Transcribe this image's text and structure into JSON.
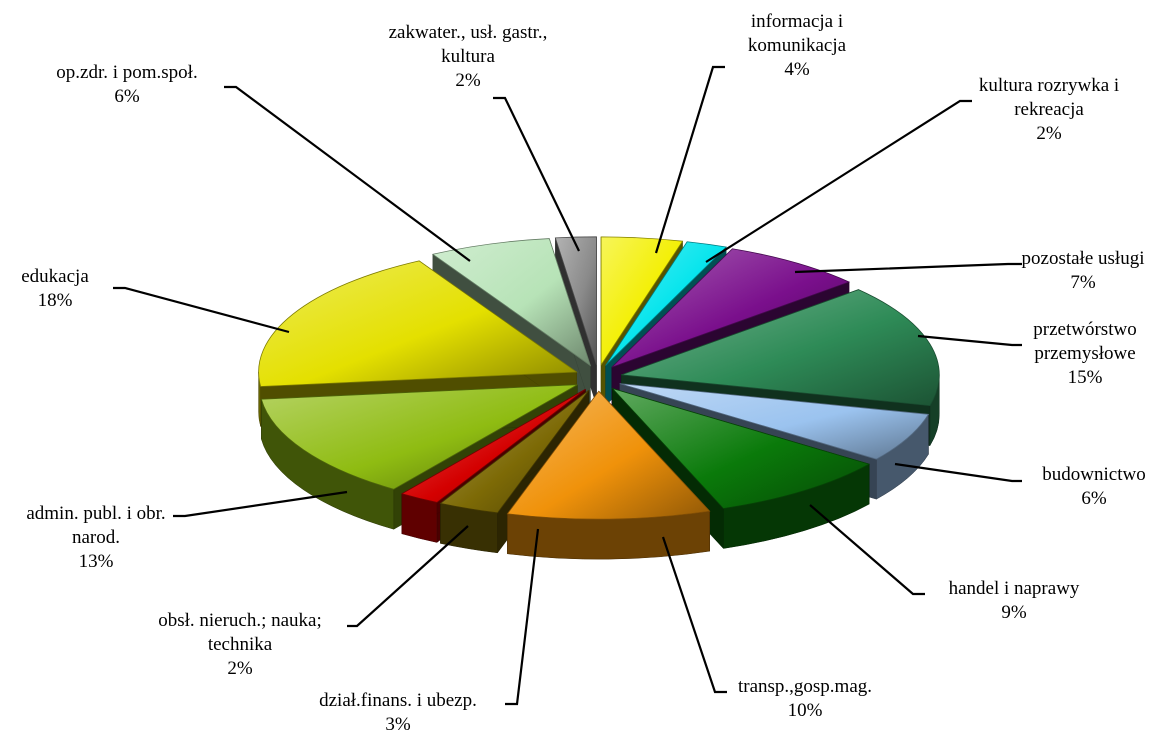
{
  "chart_data": {
    "type": "pie",
    "title": "",
    "style": "exploded 3D pie",
    "legend": "none",
    "series": [
      {
        "label": [
          "informacja i",
          "komunikacja"
        ],
        "pct_label": "4%",
        "value": 4,
        "color": "#f3ef00"
      },
      {
        "label": [
          "kultura rozrywka i",
          "rekreacja"
        ],
        "pct_label": "2%",
        "value": 2,
        "color": "#00e4ec"
      },
      {
        "label": [
          "pozostałe usługi"
        ],
        "pct_label": "7%",
        "value": 7,
        "color": "#7a0f8c"
      },
      {
        "label": [
          "przetwórstwo",
          "przemysłowe"
        ],
        "pct_label": "15%",
        "value": 15,
        "color": "#2e8b57"
      },
      {
        "label": [
          "budownictwo"
        ],
        "pct_label": "6%",
        "value": 6,
        "color": "#9bc3ef"
      },
      {
        "label": [
          "handel i naprawy"
        ],
        "pct_label": "9%",
        "value": 9,
        "color": "#0a7a0a"
      },
      {
        "label": [
          "transp.,gosp.mag."
        ],
        "pct_label": "10%",
        "value": 10,
        "color": "#f0920a"
      },
      {
        "label": [
          "dział.finans. i ubezp."
        ],
        "pct_label": "3%",
        "value": 3,
        "color": "#7d6a06"
      },
      {
        "label": [
          "obsł. nieruch.; nauka;",
          "technika"
        ],
        "pct_label": "2%",
        "value": 2,
        "color": "#d40000"
      },
      {
        "label": [
          "admin. publ. i obr.",
          "narod."
        ],
        "pct_label": "13%",
        "value": 13,
        "color": "#8fbc12"
      },
      {
        "label": [
          "edukacja"
        ],
        "pct_label": "18%",
        "value": 18,
        "color": "#e4e000"
      },
      {
        "label": [
          "op.zdr. i pom.społ."
        ],
        "pct_label": "6%",
        "value": 6,
        "color": "#b7e3b7"
      },
      {
        "label": [
          "zakwater., usł. gastr.,",
          "kultura"
        ],
        "pct_label": "2%",
        "value": 2,
        "color": "#8a8a8a"
      }
    ]
  }
}
